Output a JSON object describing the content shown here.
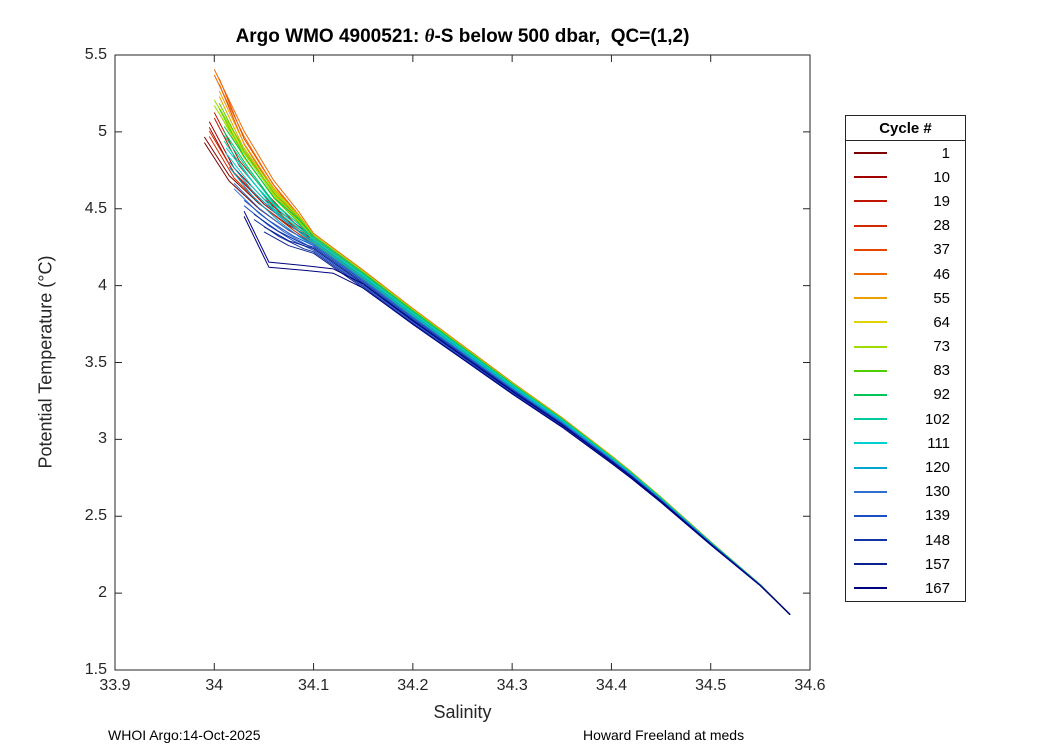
{
  "footer": {
    "left": "WHOI Argo:14-Oct-2025",
    "right": "Howard Freeland at meds"
  },
  "chart_data": {
    "type": "line",
    "title": {
      "pre": "Argo WMO 4900521: ",
      "theta": "θ",
      "post": "-S below 500 dbar,  QC=(1,2)"
    },
    "xlabel": "Salinity",
    "ylabel": "Potential Temperature (°C)",
    "xlim": [
      33.9,
      34.6
    ],
    "ylim": [
      1.5,
      5.5
    ],
    "xtick_values": [
      33.9,
      34.0,
      34.1,
      34.2,
      34.3,
      34.4,
      34.5,
      34.6
    ],
    "xtick_labels": [
      "33.9",
      "34",
      "34.1",
      "34.2",
      "34.3",
      "34.4",
      "34.5",
      "34.6"
    ],
    "ytick_values": [
      1.5,
      2.0,
      2.5,
      3.0,
      3.5,
      4.0,
      4.5,
      5.0,
      5.5
    ],
    "ytick_labels": [
      "1.5",
      "2",
      "2.5",
      "3",
      "3.5",
      "4",
      "4.5",
      "5",
      "5.5"
    ],
    "grid": false,
    "legend_title": "Cycle #",
    "legend_position": "right-outside",
    "axis_color": "#262626",
    "taper_end": 34.58,
    "taper_span": 0.48,
    "backbone": [
      [
        34.15,
        4.02
      ],
      [
        34.2,
        3.78
      ],
      [
        34.25,
        3.55
      ],
      [
        34.3,
        3.32
      ],
      [
        34.35,
        3.1
      ],
      [
        34.4,
        2.86
      ],
      [
        34.42,
        2.76
      ],
      [
        34.45,
        2.6
      ],
      [
        34.5,
        2.32
      ],
      [
        34.55,
        2.05
      ],
      [
        34.58,
        1.86
      ]
    ],
    "series": [
      {
        "name": "1",
        "color": "#7F0000",
        "offset": 0.02,
        "head": [
          [
            33.99,
            4.93
          ],
          [
            34.015,
            4.68
          ],
          [
            34.045,
            4.5
          ],
          [
            34.075,
            4.36
          ],
          [
            34.1,
            4.27
          ]
        ]
      },
      {
        "name": "10",
        "color": "#A30000",
        "offset": 0.03,
        "head": [
          [
            33.995,
            5.03
          ],
          [
            34.02,
            4.73
          ],
          [
            34.05,
            4.53
          ],
          [
            34.08,
            4.38
          ],
          [
            34.1,
            4.28
          ]
        ]
      },
      {
        "name": "19",
        "color": "#BF1600",
        "offset": 0.03,
        "head": [
          [
            34.0,
            5.09
          ],
          [
            34.025,
            4.78
          ],
          [
            34.055,
            4.55
          ],
          [
            34.08,
            4.38
          ],
          [
            34.1,
            4.28
          ]
        ]
      },
      {
        "name": "28",
        "color": "#D42A00",
        "offset": 0.02,
        "head": [
          [
            33.995,
            4.97
          ],
          [
            34.02,
            4.7
          ],
          [
            34.05,
            4.51
          ],
          [
            34.08,
            4.36
          ],
          [
            34.1,
            4.27
          ]
        ]
      },
      {
        "name": "37",
        "color": "#E64500",
        "offset": 0.05,
        "head": [
          [
            34.005,
            5.31
          ],
          [
            34.03,
            4.92
          ],
          [
            34.06,
            4.62
          ],
          [
            34.085,
            4.43
          ],
          [
            34.1,
            4.3
          ]
        ]
      },
      {
        "name": "46",
        "color": "#EE6A00",
        "offset": 0.06,
        "head": [
          [
            34.0,
            5.37
          ],
          [
            34.03,
            4.97
          ],
          [
            34.06,
            4.65
          ],
          [
            34.085,
            4.45
          ],
          [
            34.1,
            4.31
          ]
        ]
      },
      {
        "name": "55",
        "color": "#EDA000",
        "offset": 0.05,
        "head": [
          [
            34.005,
            5.23
          ],
          [
            34.03,
            4.89
          ],
          [
            34.06,
            4.6
          ],
          [
            34.085,
            4.43
          ],
          [
            34.1,
            4.3
          ]
        ]
      },
      {
        "name": "64",
        "color": "#DFD300",
        "offset": 0.05,
        "head": [
          [
            34.005,
            5.12
          ],
          [
            34.03,
            4.83
          ],
          [
            34.06,
            4.58
          ],
          [
            34.085,
            4.42
          ],
          [
            34.1,
            4.3
          ]
        ]
      },
      {
        "name": "73",
        "color": "#9EDC00",
        "offset": 0.05,
        "head": [
          [
            34.0,
            5.17
          ],
          [
            34.03,
            4.86
          ],
          [
            34.06,
            4.59
          ],
          [
            34.085,
            4.42
          ],
          [
            34.1,
            4.3
          ]
        ]
      },
      {
        "name": "83",
        "color": "#50CE00",
        "offset": 0.04,
        "head": [
          [
            34.005,
            5.15
          ],
          [
            34.03,
            4.84
          ],
          [
            34.06,
            4.57
          ],
          [
            34.085,
            4.41
          ],
          [
            34.1,
            4.29
          ]
        ]
      },
      {
        "name": "92",
        "color": "#00C657",
        "offset": 0.04,
        "head": [
          [
            34.01,
            5.0
          ],
          [
            34.035,
            4.76
          ],
          [
            34.06,
            4.54
          ],
          [
            34.085,
            4.4
          ],
          [
            34.1,
            4.29
          ]
        ]
      },
      {
        "name": "102",
        "color": "#00CBA0",
        "offset": 0.03,
        "head": [
          [
            34.01,
            4.94
          ],
          [
            34.035,
            4.71
          ],
          [
            34.06,
            4.5
          ],
          [
            34.085,
            4.37
          ],
          [
            34.1,
            4.28
          ]
        ]
      },
      {
        "name": "111",
        "color": "#00CFD0",
        "offset": 0.02,
        "head": [
          [
            34.012,
            4.86
          ],
          [
            34.04,
            4.63
          ],
          [
            34.065,
            4.46
          ],
          [
            34.085,
            4.35
          ],
          [
            34.1,
            4.27
          ]
        ]
      },
      {
        "name": "120",
        "color": "#00A6D1",
        "offset": 0.01,
        "head": [
          [
            34.015,
            4.77
          ],
          [
            34.04,
            4.57
          ],
          [
            34.065,
            4.42
          ],
          [
            34.085,
            4.32
          ],
          [
            34.1,
            4.26
          ]
        ]
      },
      {
        "name": "130",
        "color": "#2F6FD0",
        "offset": -0.01,
        "head": [
          [
            34.02,
            4.63
          ],
          [
            34.045,
            4.47
          ],
          [
            34.07,
            4.35
          ],
          [
            34.1,
            4.24
          ]
        ]
      },
      {
        "name": "139",
        "color": "#1C4EC4",
        "offset": -0.02,
        "head": [
          [
            34.03,
            4.52
          ],
          [
            34.055,
            4.39
          ],
          [
            34.08,
            4.29
          ],
          [
            34.1,
            4.23
          ]
        ]
      },
      {
        "name": "148",
        "color": "#1232A6",
        "offset": -0.03,
        "head": [
          [
            34.04,
            4.43
          ],
          [
            34.065,
            4.32
          ],
          [
            34.09,
            4.24
          ],
          [
            34.1,
            4.22
          ]
        ]
      },
      {
        "name": "157",
        "color": "#0B2190",
        "offset": -0.04,
        "head": [
          [
            34.05,
            4.35
          ],
          [
            34.075,
            4.26
          ],
          [
            34.1,
            4.21
          ]
        ]
      },
      {
        "name": "167",
        "color": "#000080",
        "offset": -0.04,
        "head": [
          [
            34.03,
            4.45
          ],
          [
            34.055,
            4.12
          ],
          [
            34.09,
            4.1
          ],
          [
            34.12,
            4.08
          ]
        ]
      }
    ]
  }
}
